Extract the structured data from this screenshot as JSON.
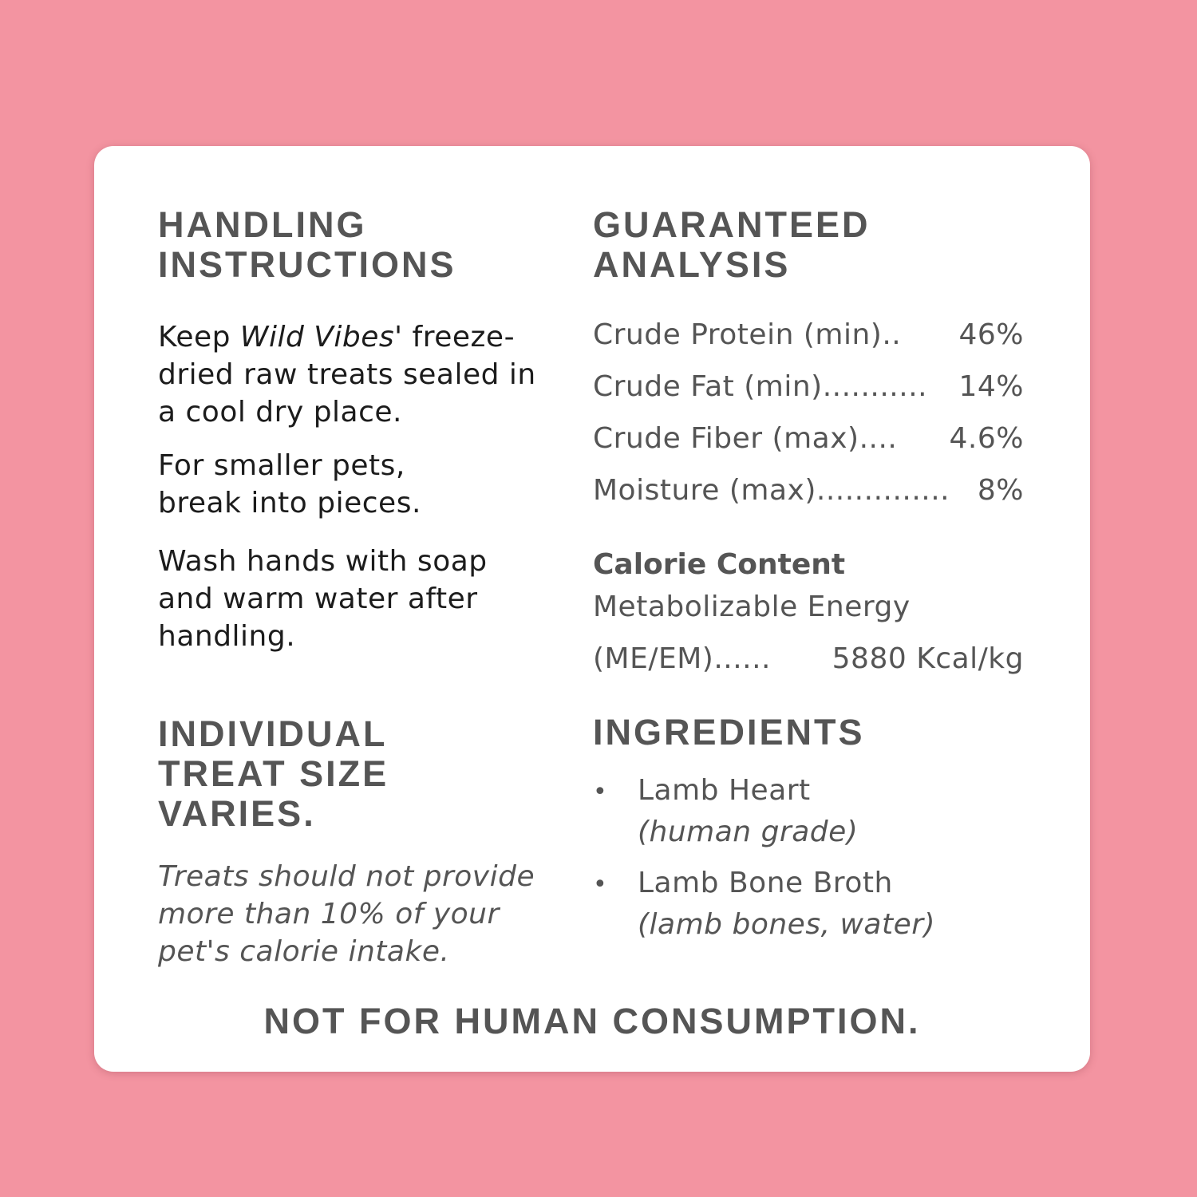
{
  "handling": {
    "title_line1": "HANDLING",
    "title_line2": "INSTRUCTIONS",
    "p1_pre": "Keep ",
    "p1_brand": "Wild Vibes'",
    "p1_post": " freeze-dried raw treats sealed in a cool dry place.",
    "p2": "For smaller pets, break into pieces.",
    "p3": "Wash hands with soap and warm water after handling."
  },
  "treat_size": {
    "title": "INDIVIDUAL TREAT SIZE VARIES.",
    "note": "Treats should not provide more than 10% of your pet's calorie intake."
  },
  "analysis": {
    "title": "GUARANTEED ANALYSIS",
    "rows": [
      {
        "label": "Crude Protein (min)",
        "dots": "..",
        "value": "46%"
      },
      {
        "label": "Crude Fat (min)",
        "dots": "...........",
        "value": "14%"
      },
      {
        "label": "Crude Fiber (max)",
        "dots": "....",
        "value": "4.6%"
      },
      {
        "label": "Moisture (max)",
        "dots": "..............",
        "value": "8%"
      }
    ],
    "calorie_title": "Calorie Content",
    "calorie_line1": "Metabolizable Energy",
    "calorie_label": "(ME/EM)",
    "calorie_dots": "......",
    "calorie_value": "5880 Kcal/kg"
  },
  "ingredients": {
    "title": "INGREDIENTS",
    "items": [
      {
        "name": "Lamb Heart",
        "detail": "(human grade)"
      },
      {
        "name": "Lamb Bone Broth",
        "detail": "(lamb bones, water)"
      }
    ]
  },
  "footer": "NOT FOR HUMAN CONSUMPTION.",
  "colors": {
    "background": "#f394a1",
    "card": "#ffffff",
    "heading": "#555555",
    "body": "#1c1c1c"
  }
}
